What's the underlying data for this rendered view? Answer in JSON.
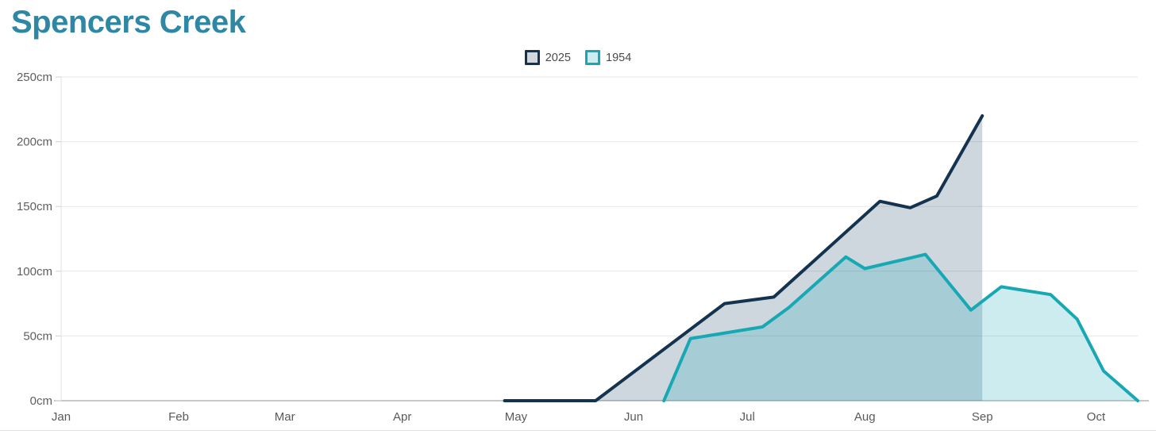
{
  "page": {
    "title": "Spencers Creek"
  },
  "legend": [
    {
      "label": "2025",
      "border_color": "#14334e",
      "fill_color": "#cfd8de"
    },
    {
      "label": "1954",
      "border_color": "#18a8b4",
      "fill_color": "#cdeef0"
    }
  ],
  "chart_data": {
    "type": "area",
    "title": "Spencers Creek",
    "subtitle": "",
    "ylabel": "",
    "xlabel": "",
    "legend_position": "top-center",
    "grid": true,
    "x_axis": {
      "kind": "time",
      "tick_labels": [
        "Jan",
        "Feb",
        "Mar",
        "Apr",
        "May",
        "Jun",
        "Jul",
        "Aug",
        "Sep",
        "Oct"
      ],
      "month_start_days": [
        0,
        31,
        59,
        90,
        120,
        151,
        181,
        212,
        243,
        273
      ],
      "domain_days": [
        0,
        284
      ]
    },
    "y_axis": {
      "unit": "cm",
      "max": 250,
      "ticks": [
        0,
        50,
        100,
        150,
        200,
        250
      ],
      "tick_labels": [
        "0cm",
        "50cm",
        "100cm",
        "150cm",
        "200cm",
        "250cm"
      ]
    },
    "series": [
      {
        "name": "2025",
        "line_color": "#14334e",
        "fill_color": "rgba(13,56,88,0.20)",
        "points": [
          {
            "date": "Apr 28",
            "day": 117,
            "value": 0
          },
          {
            "date": "May 22",
            "day": 141,
            "value": 0
          },
          {
            "date": "Jun 25",
            "day": 175,
            "value": 75
          },
          {
            "date": "Jul 8",
            "day": 188,
            "value": 80
          },
          {
            "date": "Aug 5",
            "day": 216,
            "value": 154
          },
          {
            "date": "Aug 13",
            "day": 224,
            "value": 149
          },
          {
            "date": "Aug 20",
            "day": 231,
            "value": 158
          },
          {
            "date": "Sep 1",
            "day": 243,
            "value": 220
          }
        ]
      },
      {
        "name": "1954",
        "line_color": "#18a8b4",
        "fill_color": "rgba(24,168,180,0.22)",
        "points": [
          {
            "date": "Jun 9",
            "day": 159,
            "value": 0
          },
          {
            "date": "Jun 16",
            "day": 166,
            "value": 48
          },
          {
            "date": "Jul 5",
            "day": 185,
            "value": 57
          },
          {
            "date": "Jul 12",
            "day": 192,
            "value": 72
          },
          {
            "date": "Jul 27",
            "day": 207,
            "value": 111
          },
          {
            "date": "Aug 1",
            "day": 212,
            "value": 102
          },
          {
            "date": "Aug 17",
            "day": 228,
            "value": 113
          },
          {
            "date": "Aug 29",
            "day": 240,
            "value": 70
          },
          {
            "date": "Sep 6",
            "day": 248,
            "value": 88
          },
          {
            "date": "Sep 19",
            "day": 261,
            "value": 82
          },
          {
            "date": "Sep 26",
            "day": 268,
            "value": 63
          },
          {
            "date": "Oct 3",
            "day": 275,
            "value": 23
          },
          {
            "date": "Oct 11",
            "day": 284,
            "value": 0
          }
        ]
      }
    ]
  }
}
